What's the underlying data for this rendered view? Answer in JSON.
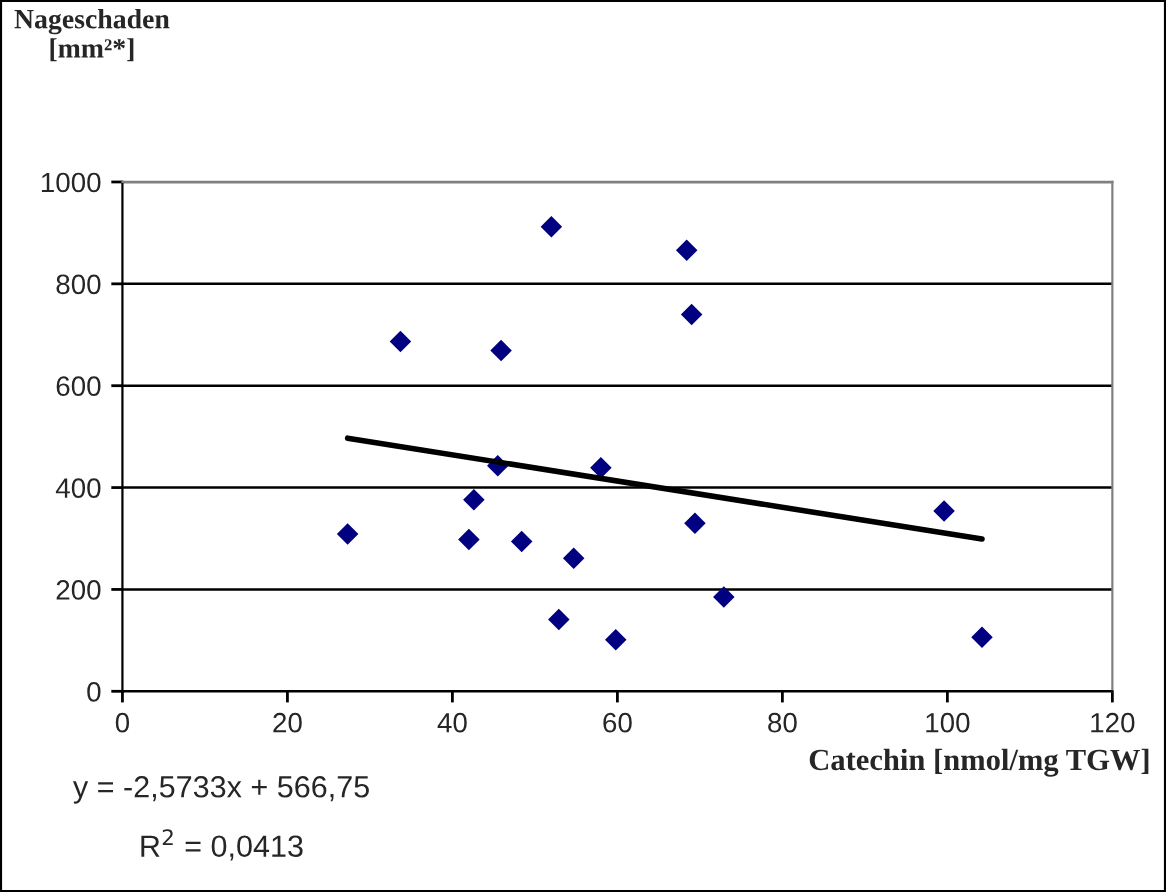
{
  "chart_data": {
    "type": "scatter",
    "ylabel": "Nageschaden\n[mm²*]",
    "xlabel": "Catechin [nmol/mg TGW]",
    "xlim": [
      0,
      120
    ],
    "xticks": [
      0,
      20,
      40,
      60,
      80,
      100,
      120
    ],
    "ylim": [
      0,
      1000
    ],
    "yticks": [
      0,
      200,
      400,
      600,
      800,
      1000
    ],
    "grid": "y",
    "series": [
      {
        "marker": "diamond",
        "color": "#000080",
        "x": [
          52.0,
          33.7,
          45.9,
          45.5,
          58.0,
          42.6,
          27.3,
          42.0,
          48.4,
          54.7,
          52.9,
          59.8,
          68.4,
          69.0,
          69.4,
          72.9,
          99.6,
          104.2
        ],
        "values": [
          912,
          687,
          669,
          443,
          439,
          376,
          309,
          298,
          294,
          261,
          141,
          101,
          866,
          740,
          330,
          185,
          354,
          106
        ]
      },
      {
        "type": "line",
        "color": "#000000",
        "x": [
          27.3,
          104.2
        ],
        "values": [
          497,
          299
        ]
      }
    ],
    "annotations": [
      "y = -2,5733x + 566,75",
      "R$^{2}$ = 0,0413"
    ]
  }
}
